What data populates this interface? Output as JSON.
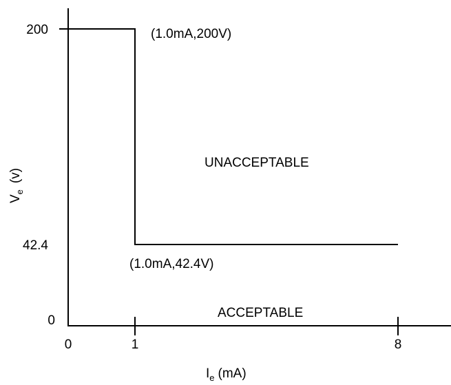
{
  "chart_data": {
    "type": "line",
    "title": "",
    "xlabel": "I",
    "xlabel_sub": "e",
    "xlabel_unit": "(mA)",
    "ylabel": "V",
    "ylabel_sub": "e",
    "ylabel_unit": "(v)",
    "x_ticks": [
      {
        "value": 0,
        "label": "0"
      },
      {
        "value": 1,
        "label": "1"
      },
      {
        "value": 8,
        "label": "8"
      }
    ],
    "y_ticks": [
      {
        "value": 0,
        "label": "0"
      },
      {
        "value": 42.4,
        "label": "42.4"
      },
      {
        "value": 200,
        "label": "200"
      }
    ],
    "series": [
      {
        "points": [
          {
            "x": 0,
            "y": 200
          },
          {
            "x": 1,
            "y": 200
          },
          {
            "x": 1,
            "y": 42.4
          },
          {
            "x": 8,
            "y": 42.4
          }
        ],
        "color": "#000000"
      }
    ],
    "annotations": [
      {
        "id": "upper-point",
        "text": "(1.0mA,200V)",
        "x": 1,
        "y": 200
      },
      {
        "id": "lower-point",
        "text": "(1.0mA,42.4V)",
        "x": 1,
        "y": 42.4
      }
    ],
    "regions": [
      {
        "id": "unacceptable",
        "text": "UNACCEPTABLE"
      },
      {
        "id": "acceptable",
        "text": "ACCEPTABLE"
      }
    ],
    "colors": {
      "line": "#000000",
      "background": "#ffffff"
    }
  }
}
